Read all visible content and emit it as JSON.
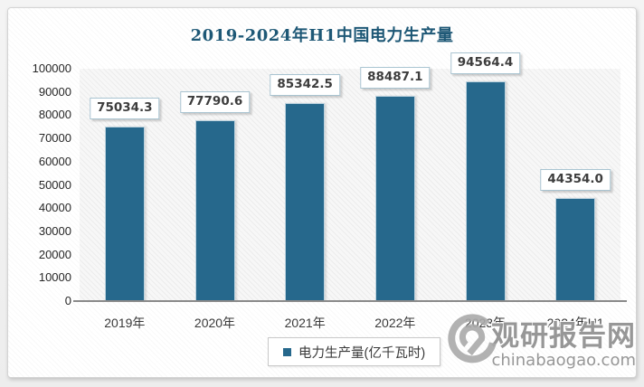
{
  "title": "2019-2024年H1中国电力生产量",
  "chart_data": {
    "type": "bar",
    "title": "2019-2024年H1中国电力生产量",
    "categories": [
      "2019年",
      "2020年",
      "2021年",
      "2022年",
      "2023年",
      "2024年H1"
    ],
    "series": [
      {
        "name": "电力生产量(亿千瓦时)",
        "values": [
          75034.3,
          77790.6,
          85342.5,
          88487.1,
          94564.4,
          44354.0
        ],
        "value_labels": [
          "75034.3",
          "77790.6",
          "85342.5",
          "88487.1",
          "94564.4",
          "44354.0"
        ]
      }
    ],
    "xlabel": "",
    "ylabel": "",
    "ylim": [
      0,
      100000
    ],
    "yticks": [
      0,
      10000,
      20000,
      30000,
      40000,
      50000,
      60000,
      70000,
      80000,
      90000,
      100000
    ],
    "grid": false,
    "legend_position": "bottom",
    "bar_color": "#26688c"
  },
  "legend": {
    "label": "电力生产量(亿千瓦时)"
  },
  "watermark": {
    "brand": "观研报告网",
    "domain": "chinabaogao.com"
  }
}
